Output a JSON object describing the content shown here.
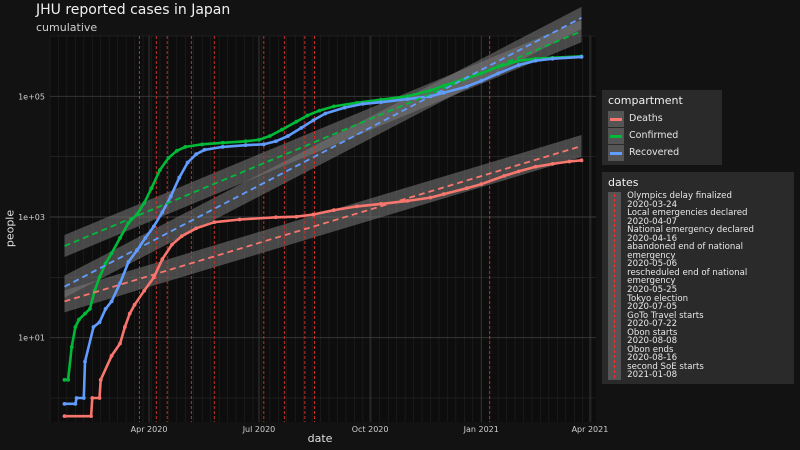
{
  "chart_data": {
    "type": "line",
    "title": "JHU reported cases in Japan",
    "subtitle": "cumulative",
    "xlabel": "date",
    "ylabel": "people",
    "y_scale": "log10",
    "ylim": [
      0.4,
      1000000
    ],
    "y_ticks": [
      {
        "value": 10,
        "label": "1e+01"
      },
      {
        "value": 1000,
        "label": "1e+03"
      },
      {
        "value": 100000,
        "label": "1e+05"
      }
    ],
    "x_ticks": [
      {
        "value": "2020-04-01",
        "label": "Apr 2020"
      },
      {
        "value": "2020-07-01",
        "label": "Jul 2020"
      },
      {
        "value": "2020-10-01",
        "label": "Oct 2020"
      },
      {
        "value": "2021-01-01",
        "label": "Jan 2021"
      },
      {
        "value": "2021-04-01",
        "label": "Apr 2021"
      }
    ],
    "xlim": [
      "2020-01-10",
      "2021-04-06"
    ],
    "series": [
      {
        "name": "Deaths",
        "color": "#f8766d",
        "points": [
          [
            "2020-01-22",
            0.5
          ],
          [
            "2020-02-13",
            0.5
          ],
          [
            "2020-02-14",
            1
          ],
          [
            "2020-02-20",
            1
          ],
          [
            "2020-02-21",
            2
          ],
          [
            "2020-03-01",
            5
          ],
          [
            "2020-03-08",
            8
          ],
          [
            "2020-03-12",
            15
          ],
          [
            "2020-03-16",
            25
          ],
          [
            "2020-03-20",
            35
          ],
          [
            "2020-03-28",
            60
          ],
          [
            "2020-04-05",
            100
          ],
          [
            "2020-04-12",
            200
          ],
          [
            "2020-04-20",
            350
          ],
          [
            "2020-04-28",
            480
          ],
          [
            "2020-05-10",
            650
          ],
          [
            "2020-05-25",
            820
          ],
          [
            "2020-06-15",
            910
          ],
          [
            "2020-07-15",
            990
          ],
          [
            "2020-08-01",
            1010
          ],
          [
            "2020-08-15",
            1100
          ],
          [
            "2020-09-01",
            1300
          ],
          [
            "2020-09-20",
            1500
          ],
          [
            "2020-10-10",
            1650
          ],
          [
            "2020-11-01",
            1850
          ],
          [
            "2020-11-20",
            2100
          ],
          [
            "2020-12-01",
            2400
          ],
          [
            "2020-12-20",
            3000
          ],
          [
            "2021-01-01",
            3500
          ],
          [
            "2021-01-20",
            4800
          ],
          [
            "2021-02-01",
            5700
          ],
          [
            "2021-02-15",
            6800
          ],
          [
            "2021-03-01",
            7600
          ],
          [
            "2021-03-15",
            8300
          ],
          [
            "2021-03-25",
            8700
          ]
        ]
      },
      {
        "name": "Confirmed",
        "color": "#00ba38",
        "points": [
          [
            "2020-01-22",
            2
          ],
          [
            "2020-01-25",
            2
          ],
          [
            "2020-01-28",
            7
          ],
          [
            "2020-01-31",
            15
          ],
          [
            "2020-02-03",
            20
          ],
          [
            "2020-02-08",
            25
          ],
          [
            "2020-02-12",
            30
          ],
          [
            "2020-02-16",
            60
          ],
          [
            "2020-02-20",
            100
          ],
          [
            "2020-02-25",
            170
          ],
          [
            "2020-03-01",
            250
          ],
          [
            "2020-03-08",
            450
          ],
          [
            "2020-03-15",
            800
          ],
          [
            "2020-03-22",
            1100
          ],
          [
            "2020-03-28",
            1700
          ],
          [
            "2020-04-03",
            3000
          ],
          [
            "2020-04-10",
            6000
          ],
          [
            "2020-04-17",
            9500
          ],
          [
            "2020-04-24",
            12500
          ],
          [
            "2020-05-01",
            14500
          ],
          [
            "2020-05-15",
            16000
          ],
          [
            "2020-06-01",
            17000
          ],
          [
            "2020-06-20",
            18000
          ],
          [
            "2020-07-01",
            19000
          ],
          [
            "2020-07-10",
            22000
          ],
          [
            "2020-07-20",
            28000
          ],
          [
            "2020-08-01",
            38000
          ],
          [
            "2020-08-10",
            48000
          ],
          [
            "2020-08-20",
            58000
          ],
          [
            "2020-09-01",
            68000
          ],
          [
            "2020-09-20",
            78000
          ],
          [
            "2020-10-10",
            88000
          ],
          [
            "2020-11-01",
            100000
          ],
          [
            "2020-11-20",
            125000
          ],
          [
            "2020-12-01",
            150000
          ],
          [
            "2020-12-20",
            200000
          ],
          [
            "2021-01-01",
            240000
          ],
          [
            "2021-01-15",
            310000
          ],
          [
            "2021-02-01",
            390000
          ],
          [
            "2021-02-15",
            420000
          ],
          [
            "2021-03-01",
            435000
          ],
          [
            "2021-03-25",
            460000
          ]
        ]
      },
      {
        "name": "Recovered",
        "color": "#619cff",
        "points": [
          [
            "2020-01-22",
            0.8
          ],
          [
            "2020-01-31",
            0.8
          ],
          [
            "2020-02-01",
            1
          ],
          [
            "2020-02-07",
            1
          ],
          [
            "2020-02-08",
            4
          ],
          [
            "2020-02-15",
            15
          ],
          [
            "2020-02-20",
            18
          ],
          [
            "2020-02-25",
            30
          ],
          [
            "2020-03-01",
            40
          ],
          [
            "2020-03-08",
            80
          ],
          [
            "2020-03-15",
            180
          ],
          [
            "2020-03-22",
            280
          ],
          [
            "2020-03-29",
            450
          ],
          [
            "2020-04-05",
            700
          ],
          [
            "2020-04-12",
            1200
          ],
          [
            "2020-04-19",
            2200
          ],
          [
            "2020-04-26",
            4500
          ],
          [
            "2020-05-03",
            8000
          ],
          [
            "2020-05-10",
            11000
          ],
          [
            "2020-05-17",
            13000
          ],
          [
            "2020-06-01",
            14500
          ],
          [
            "2020-06-20",
            15500
          ],
          [
            "2020-07-05",
            16000
          ],
          [
            "2020-07-15",
            18000
          ],
          [
            "2020-07-25",
            22000
          ],
          [
            "2020-08-05",
            30000
          ],
          [
            "2020-08-15",
            40000
          ],
          [
            "2020-08-25",
            52000
          ],
          [
            "2020-09-10",
            65000
          ],
          [
            "2020-09-25",
            75000
          ],
          [
            "2020-10-10",
            80000
          ],
          [
            "2020-11-01",
            90000
          ],
          [
            "2020-11-20",
            100000
          ],
          [
            "2020-12-01",
            115000
          ],
          [
            "2020-12-20",
            145000
          ],
          [
            "2021-01-01",
            180000
          ],
          [
            "2021-01-15",
            240000
          ],
          [
            "2021-02-01",
            330000
          ],
          [
            "2021-02-15",
            390000
          ],
          [
            "2021-03-01",
            420000
          ],
          [
            "2021-03-25",
            450000
          ]
        ]
      }
    ],
    "trend_lines": [
      {
        "series": "Deaths",
        "from": [
          "2020-01-22",
          40
        ],
        "to": [
          "2021-03-25",
          15000
        ]
      },
      {
        "series": "Confirmed",
        "from": [
          "2020-01-22",
          330
        ],
        "to": [
          "2021-03-25",
          1200000
        ]
      },
      {
        "series": "Recovered",
        "from": [
          "2020-01-22",
          70
        ],
        "to": [
          "2021-03-25",
          2000000
        ]
      }
    ],
    "event_dates": [
      "2020-03-24",
      "2020-04-07",
      "2020-04-16",
      "2020-05-06",
      "2020-05-25",
      "2020-07-05",
      "2020-07-22",
      "2020-08-08",
      "2020-08-16",
      "2021-01-08"
    ],
    "legend_compartment": {
      "title": "compartment",
      "items": [
        {
          "label": "Deaths",
          "color": "#f8766d"
        },
        {
          "label": "Confirmed",
          "color": "#00ba38"
        },
        {
          "label": "Recovered",
          "color": "#619cff"
        }
      ]
    },
    "legend_dates": {
      "title": "dates",
      "lines": [
        "Olympics delay finalized",
        "2020-03-24",
        "Local emergencies declared",
        "2020-04-07",
        "National emergency declared",
        "2020-04-16",
        "abandoned end of national emergency",
        "2020-05-06",
        "rescheduled end of national emergency",
        "2020-05-25",
        "Tokyo election",
        "2020-07-05",
        "GoTo Travel starts",
        "2020-07-22",
        "Obon starts",
        "2020-08-08",
        "Obon ends",
        "2020-08-16",
        "second SoE starts",
        "2021-01-08"
      ]
    }
  }
}
